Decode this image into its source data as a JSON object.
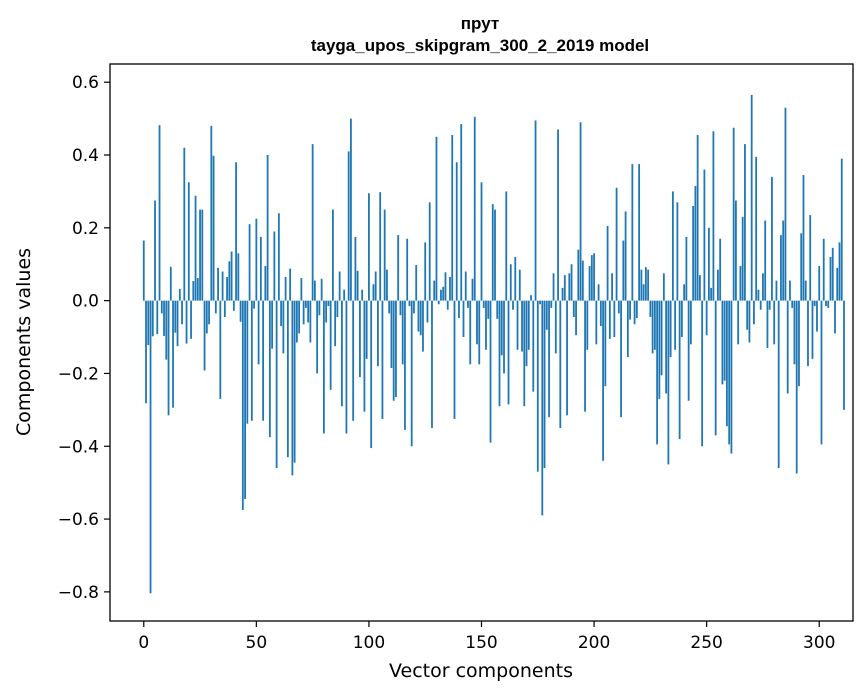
{
  "chart_data": {
    "type": "bar",
    "title": "прут",
    "subtitle": "tayga_upos_skipgram_300_2_2019 model",
    "xlabel": "Vector components",
    "ylabel": "Components values",
    "xlim": [
      -15,
      315
    ],
    "ylim": [
      -0.88,
      0.65
    ],
    "xticks": [
      0,
      50,
      100,
      150,
      200,
      250,
      300
    ],
    "xtick_labels": [
      "0",
      "50",
      "100",
      "150",
      "200",
      "250",
      "300"
    ],
    "yticks": [
      -0.8,
      -0.6,
      -0.4,
      -0.2,
      0.0,
      0.2,
      0.4,
      0.6
    ],
    "ytick_labels": [
      "−0.8",
      "−0.6",
      "−0.4",
      "−0.2",
      "0.0",
      "0.2",
      "0.4",
      "0.6"
    ],
    "grid": false,
    "bar_color": "#1f77b4",
    "values": [
      0.165,
      -0.282,
      -0.122,
      -0.804,
      -0.098,
      0.275,
      -0.092,
      0.482,
      -0.035,
      -0.097,
      -0.162,
      -0.315,
      0.093,
      -0.294,
      -0.088,
      -0.125,
      0.032,
      -0.065,
      0.42,
      -0.118,
      0.325,
      -0.105,
      0.054,
      0.288,
      0.062,
      0.25,
      0.25,
      -0.192,
      -0.09,
      -0.065,
      0.48,
      0.398,
      -0.035,
      0.09,
      -0.27,
      0.08,
      -0.045,
      0.065,
      0.108,
      0.135,
      -0.028,
      0.38,
      0.13,
      -0.058,
      -0.575,
      -0.545,
      -0.338,
      0.21,
      -0.33,
      -0.022,
      0.225,
      -0.175,
      0.175,
      -0.33,
      0.095,
      0.4,
      -0.375,
      -0.132,
      0.19,
      -0.46,
      0.24,
      -0.07,
      -0.145,
      0.065,
      -0.43,
      0.088,
      -0.48,
      -0.445,
      -0.115,
      -0.09,
      0.062,
      -0.065,
      -0.02,
      -0.06,
      -0.115,
      0.43,
      0.055,
      -0.2,
      -0.04,
      0.06,
      -0.365,
      -0.06,
      -0.015,
      -0.245,
      0.25,
      -0.125,
      -0.045,
      0.08,
      -0.29,
      0.03,
      -0.365,
      0.41,
      0.5,
      -0.33,
      0.175,
      0.082,
      -0.21,
      0.03,
      -0.305,
      -0.16,
      0.295,
      -0.405,
      0.045,
      0.08,
      -0.18,
      0.298,
      -0.325,
      0.25,
      0.085,
      -0.035,
      -0.185,
      -0.275,
      -0.265,
      0.18,
      -0.04,
      -0.175,
      -0.355,
      0.17,
      -0.015,
      -0.4,
      -0.035,
      0.098,
      -0.085,
      -0.095,
      -0.14,
      0.16,
      -0.06,
      0.27,
      -0.35,
      0.055,
      0.45,
      -0.01,
      0.03,
      0.038,
      0.078,
      -0.025,
      0.065,
      0.455,
      -0.325,
      0.38,
      -0.048,
      0.485,
      -0.1,
      0.08,
      -0.02,
      -0.175,
      0.06,
      0.505,
      -0.12,
      -0.175,
      0.325,
      -0.02,
      -0.135,
      -0.05,
      -0.39,
      0.265,
      0.25,
      -0.05,
      -0.29,
      -0.15,
      -0.2,
      0.3,
      -0.285,
      0.1,
      -0.025,
      0.12,
      -0.135,
      0.085,
      -0.14,
      -0.29,
      -0.18,
      -0.135,
      0.015,
      -0.25,
      0.495,
      -0.47,
      -0.01,
      -0.59,
      -0.46,
      -0.08,
      -0.32,
      -0.02,
      0.075,
      -0.145,
      0.47,
      -0.35,
      0.035,
      0.07,
      -0.315,
      0.075,
      0.1,
      -0.045,
      -0.095,
      0.14,
      0.49,
      0.11,
      -0.305,
      -0.135,
      0.095,
      0.125,
      0.13,
      -0.12,
      0.045,
      -0.07,
      -0.44,
      -0.235,
      0.205,
      -0.105,
      0.075,
      -0.1,
      0.31,
      -0.035,
      -0.32,
      0.165,
      0.245,
      -0.155,
      -0.052,
      0.375,
      -0.065,
      -0.048,
      0.375,
      0.085,
      0.045,
      0.092,
      0.085,
      -0.045,
      -0.145,
      -0.135,
      -0.395,
      -0.27,
      -0.205,
      0.075,
      -0.255,
      -0.45,
      -0.155,
      0.3,
      -0.135,
      0.27,
      -0.38,
      -0.1,
      0.045,
      0.175,
      -0.275,
      -0.12,
      0.26,
      0.315,
      0.455,
      0.07,
      -0.4,
      0.36,
      -0.095,
      0.2,
      0.035,
      0.465,
      -0.37,
      0.085,
      0.17,
      -0.23,
      -0.22,
      -0.345,
      -0.395,
      -0.42,
      0.475,
      0.275,
      -0.12,
      0.095,
      0.23,
      0.43,
      -0.08,
      -0.115,
      0.565,
      -0.065,
      0.395,
      0.03,
      -0.025,
      0.075,
      0.22,
      -0.13,
      -0.025,
      0.34,
      -0.12,
      0.055,
      -0.46,
      0.18,
      0.22,
      0.53,
      -0.255,
      0.055,
      -0.02,
      -0.175,
      -0.475,
      -0.235,
      0.185,
      0.345,
      0.055,
      -0.18,
      0.235,
      -0.16,
      -0.015,
      -0.085,
      0.095,
      -0.395,
      0.17,
      -0.015,
      -0.02,
      0.12,
      0.145,
      -0.09,
      0.09,
      0.16,
      0.39,
      -0.3
    ]
  }
}
